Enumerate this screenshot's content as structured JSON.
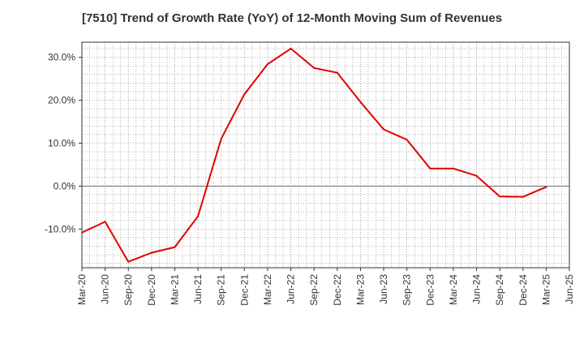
{
  "chart_data": {
    "type": "line",
    "title": "[7510]  Trend of Growth Rate (YoY) of 12-Month Moving Sum of Revenues",
    "xlabel": "",
    "ylabel": "",
    "x_ticks": [
      "Mar-20",
      "Jun-20",
      "Sep-20",
      "Dec-20",
      "Mar-21",
      "Jun-21",
      "Sep-21",
      "Dec-21",
      "Mar-22",
      "Jun-22",
      "Sep-22",
      "Dec-22",
      "Mar-23",
      "Jun-23",
      "Sep-23",
      "Dec-23",
      "Mar-24",
      "Jun-24",
      "Sep-24",
      "Dec-24",
      "Mar-25",
      "Jun-25"
    ],
    "y_ticks": [
      -10,
      0,
      10,
      20,
      30
    ],
    "y_tick_labels": [
      "-10.0%",
      "0.0%",
      "10.0%",
      "20.0%",
      "30.0%"
    ],
    "ylim": [
      -19,
      33.5
    ],
    "grid": true,
    "color": "#e00000",
    "series": [
      {
        "x": [
          "Mar-20",
          "Jun-20",
          "Sep-20",
          "Dec-20",
          "Mar-21",
          "Jun-21",
          "Sep-21",
          "Dec-21",
          "Mar-22",
          "Jun-22",
          "Sep-22",
          "Dec-22",
          "Mar-23",
          "Jun-23",
          "Sep-23",
          "Dec-23",
          "Mar-24",
          "Jun-24",
          "Sep-24",
          "Dec-24",
          "Mar-25"
        ],
        "values": [
          -10.8,
          -8.3,
          -17.6,
          -15.5,
          -14.2,
          -7.0,
          11.0,
          21.4,
          28.4,
          32.0,
          27.5,
          26.4,
          19.6,
          13.2,
          10.8,
          4.1,
          4.1,
          2.4,
          -2.4,
          -2.5,
          -0.2
        ]
      }
    ]
  }
}
